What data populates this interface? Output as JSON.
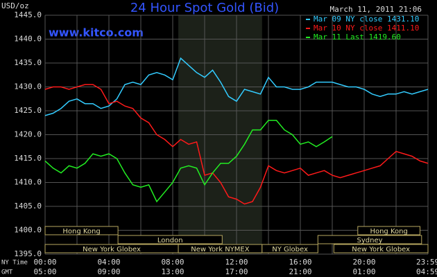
{
  "chart_data": {
    "type": "line",
    "title": "24 Hour Spot Gold (Bid)",
    "ylabel": "USD/oz",
    "timestamp": "March 11, 2011 21:06",
    "watermark": "www.kitco.com",
    "x": [
      0,
      0.5,
      1,
      1.5,
      2,
      2.5,
      3,
      3.5,
      4,
      4.5,
      5,
      5.5,
      6,
      6.5,
      7,
      7.5,
      8,
      8.5,
      9,
      9.5,
      10,
      10.5,
      11,
      11.5,
      12,
      12.5,
      13,
      13.5,
      14,
      14.5,
      15,
      15.5,
      16,
      16.5,
      17,
      17.5,
      18,
      18.5,
      19,
      19.5,
      20,
      20.5,
      21,
      21.5,
      22,
      22.5,
      23,
      23.5,
      24
    ],
    "series": [
      {
        "name": "Mar 09 NY close 1431.10",
        "color": "#33ccff",
        "values": [
          1424.0,
          1424.5,
          1425.5,
          1427.0,
          1427.5,
          1426.5,
          1426.5,
          1425.5,
          1426.0,
          1427.5,
          1430.5,
          1431.0,
          1430.5,
          1432.5,
          1433.0,
          1432.5,
          1431.5,
          1436.0,
          1434.5,
          1433.0,
          1432.0,
          1433.5,
          1431.0,
          1428.0,
          1427.0,
          1429.5,
          1429.0,
          1428.5,
          1432.0,
          1430.0,
          1430.0,
          1429.5,
          1429.5,
          1430.0,
          1431.0,
          1431.0,
          1431.0,
          1430.5,
          1430.0,
          1430.0,
          1429.5,
          1428.5,
          1428.0,
          1428.5,
          1428.5,
          1429.0,
          1428.5,
          1429.0,
          1429.5
        ]
      },
      {
        "name": "Mar 10 NY close 1411.10",
        "color": "#ff1a1a",
        "values": [
          1429.5,
          1430.0,
          1430.0,
          1429.5,
          1430.0,
          1430.5,
          1430.5,
          1429.5,
          1426.5,
          1427.0,
          1426.0,
          1425.5,
          1423.5,
          1422.5,
          1420.0,
          1419.0,
          1417.5,
          1419.0,
          1418.0,
          1418.5,
          1411.5,
          1412.0,
          1410.0,
          1407.0,
          1406.5,
          1405.5,
          1406.0,
          1409.0,
          1413.5,
          1412.5,
          1412.0,
          1412.5,
          1413.0,
          1411.5,
          1412.0,
          1412.5,
          1411.5,
          1411.0,
          1411.5,
          1412.0,
          1412.5,
          1413.0,
          1413.5,
          1415.0,
          1416.5,
          1416.0,
          1415.5,
          1414.5,
          1414.0
        ]
      },
      {
        "name": "Mar 11 Last 1419.60",
        "color": "#22ee22",
        "values": [
          1414.5,
          1413.0,
          1412.0,
          1413.5,
          1413.0,
          1414.0,
          1416.0,
          1415.5,
          1416.0,
          1415.0,
          1412.0,
          1409.5,
          1409.0,
          1409.5,
          1406.0,
          1408.0,
          1410.0,
          1413.0,
          1413.5,
          1413.0,
          1409.5,
          1412.0,
          1414.0,
          1414.0,
          1415.5,
          1418.0,
          1421.0,
          1421.0,
          1423.0,
          1423.0,
          1421.0,
          1420.0,
          1418.0,
          1418.5,
          1417.5,
          1418.5,
          1419.6,
          null,
          null,
          null,
          null,
          null,
          null,
          null,
          null,
          null,
          null,
          null,
          null
        ]
      }
    ],
    "xlim": [
      0,
      24
    ],
    "ylim": [
      1395,
      1445
    ],
    "yticks": [
      {
        "value": 1395,
        "label": "1395.0"
      },
      {
        "value": 1400,
        "label": "1400.0"
      },
      {
        "value": 1405,
        "label": "1405.0"
      },
      {
        "value": 1410,
        "label": "1410.0"
      },
      {
        "value": 1415,
        "label": "1415.0"
      },
      {
        "value": 1420,
        "label": "1420.0"
      },
      {
        "value": 1425,
        "label": "1425.0"
      },
      {
        "value": 1430,
        "label": "1430.0"
      },
      {
        "value": 1435,
        "label": "1435.0"
      },
      {
        "value": 1440,
        "label": "1440.0"
      },
      {
        "value": 1445,
        "label": "1445.0"
      }
    ],
    "xticks": [
      {
        "value": 0,
        "label": "00:00"
      },
      {
        "value": 4,
        "label": "04:00"
      },
      {
        "value": 8,
        "label": "08:00"
      },
      {
        "value": 12,
        "label": "12:00"
      },
      {
        "value": 16,
        "label": "16:00"
      },
      {
        "value": 20,
        "label": "20:00"
      },
      {
        "value": 23.98,
        "label": "23:59"
      }
    ],
    "xticks_gmt": [
      {
        "value": 0,
        "label": "05:00"
      },
      {
        "value": 4,
        "label": "09:00"
      },
      {
        "value": 8,
        "label": "13:00"
      },
      {
        "value": 12,
        "label": "17:00"
      },
      {
        "value": 16,
        "label": "21:00"
      },
      {
        "value": 20,
        "label": "01:00"
      },
      {
        "value": 23.98,
        "label": "04:59"
      }
    ],
    "xtick_row_labels": [
      "NY Time",
      "GMT"
    ],
    "xgrid": [
      0,
      2,
      4,
      6,
      8,
      10,
      12,
      14,
      16,
      18,
      20,
      22,
      24
    ],
    "grid": true,
    "shaded": [
      [
        8.35,
        13.6
      ]
    ],
    "session_rows": [
      [
        {
          "label": "Hong Kong",
          "start": 0,
          "end": 4.57
        },
        {
          "label": "Hong Kong",
          "start": 19.6,
          "end": 23.5
        }
      ],
      [
        {
          "label": "London",
          "start": 4.57,
          "end": 11.1
        },
        {
          "label": "Sydney",
          "start": 17.1,
          "end": 23.6
        }
      ],
      [
        {
          "label": "New York Globex",
          "start": 0,
          "end": 8.35
        },
        {
          "label": "New York NYMEX",
          "start": 8.35,
          "end": 13.6
        },
        {
          "label": "NY Globex",
          "start": 13.6,
          "end": 17.1
        },
        {
          "label": "New York Globex",
          "start": 18.1,
          "end": 24
        }
      ]
    ]
  }
}
